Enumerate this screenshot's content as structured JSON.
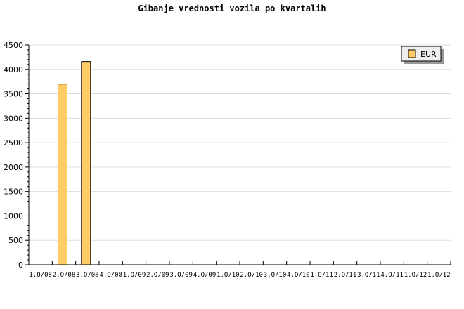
{
  "chart_data": {
    "type": "bar",
    "title": "Gibanje vrednosti vozila po kvartalih",
    "xlabel": "",
    "ylabel": "",
    "categories": [
      "1.Q/08",
      "2.Q/08",
      "3.Q/08",
      "4.Q/08",
      "1.Q/09",
      "2.Q/09",
      "3.Q/09",
      "4.Q/09",
      "1.Q/10",
      "2.Q/10",
      "3.Q/10",
      "4.Q/10",
      "1.Q/11",
      "2.Q/11",
      "3.Q/11",
      "4.Q/11",
      "1.Q/12",
      "1.Q/12"
    ],
    "series": [
      {
        "name": "EUR",
        "color": "#ffcc66",
        "values": [
          null,
          3700,
          4160,
          null,
          null,
          null,
          null,
          null,
          null,
          null,
          null,
          null,
          null,
          null,
          null,
          null,
          null,
          null
        ]
      }
    ],
    "ylim": [
      0,
      4500
    ],
    "yticks": [
      0,
      500,
      1000,
      1500,
      2000,
      2500,
      3000,
      3500,
      4000,
      4500
    ],
    "grid": true,
    "legend": "top-right"
  }
}
